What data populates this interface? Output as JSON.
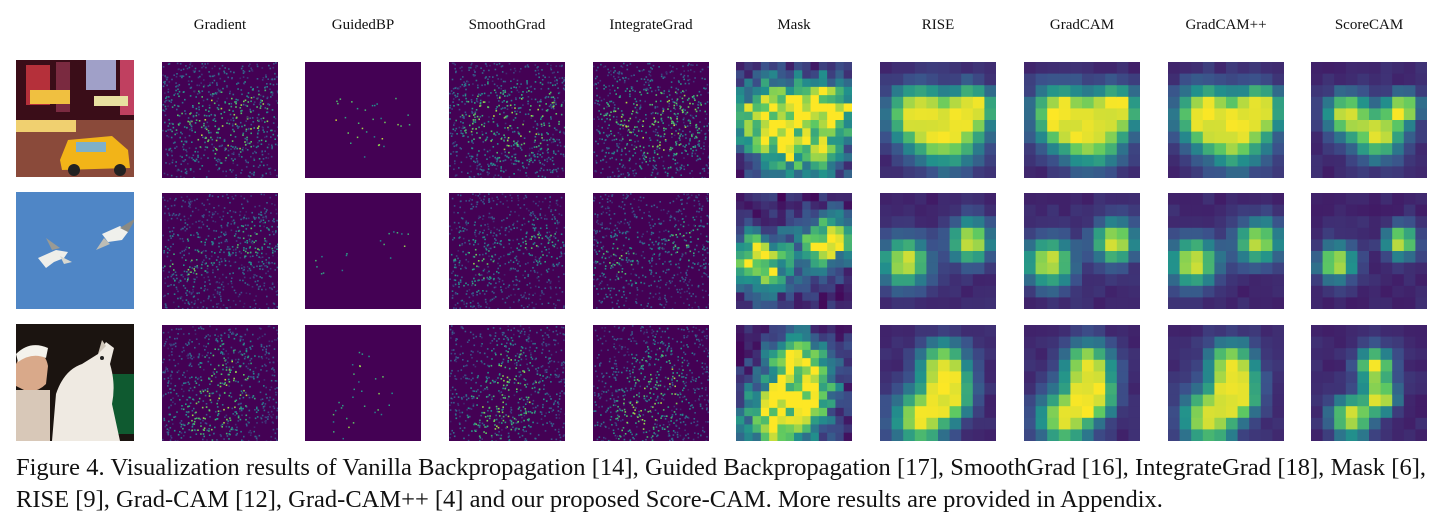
{
  "columns": [
    {
      "label": "Gradient",
      "kind": "sparse"
    },
    {
      "label": "GuidedBP",
      "kind": "edges"
    },
    {
      "label": "SmoothGrad",
      "kind": "sparse"
    },
    {
      "label": "IntegrateGrad",
      "kind": "sparse"
    },
    {
      "label": "Mask",
      "kind": "mask"
    },
    {
      "label": "RISE",
      "kind": "heat"
    },
    {
      "label": "GradCAM",
      "kind": "heat"
    },
    {
      "label": "GradCAM++",
      "kind": "heat"
    },
    {
      "label": "ScoreCAM",
      "kind": "heat"
    }
  ],
  "rows": [
    {
      "subject": "times-square-taxi-photo"
    },
    {
      "subject": "two-birds-in-sky-photo"
    },
    {
      "subject": "woman-and-white-dog-photo"
    }
  ],
  "colors": {
    "viridis_low": "#440154",
    "viridis_mid": "#21918c",
    "viridis_high": "#fde725"
  },
  "caption": "Figure 4. Visualization results of Vanilla Backpropagation [14], Guided Backpropagation [17], SmoothGrad [16], IntegrateGrad [18], Mask [6], RISE [9], Grad-CAM [12], Grad-CAM++ [4] and our proposed Score-CAM. More results are provided in Appendix."
}
